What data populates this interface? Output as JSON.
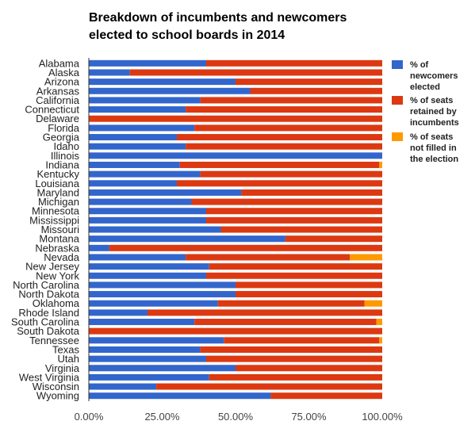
{
  "chart_data": {
    "type": "bar",
    "orientation": "horizontal",
    "stacked": true,
    "title_line1": "Breakdown of incumbents and newcomers",
    "title_line2": "elected to school boards in 2014",
    "categories": [
      "Alabama",
      "Alaska",
      "Arizona",
      "Arkansas",
      "California",
      "Connecticut",
      "Delaware",
      "Florida",
      "Georgia",
      "Idaho",
      "Illinois",
      "Indiana",
      "Kentucky",
      "Louisiana",
      "Maryland",
      "Michigan",
      "Minnesota",
      "Mississippi",
      "Missouri",
      "Montana",
      "Nebraska",
      "Nevada",
      "New Jersey",
      "New York",
      "North Carolina",
      "North Dakota",
      "Oklahoma",
      "Rhode Island",
      "South Carolina",
      "South Dakota",
      "Tennessee",
      "Texas",
      "Utah",
      "Virginia",
      "West Virginia",
      "Wisconsin",
      "Wyoming"
    ],
    "series": [
      {
        "name": "% of newcomers elected",
        "color": "#3366cc",
        "values": [
          40,
          14,
          50,
          55,
          38,
          33,
          0,
          36,
          30,
          33,
          100,
          31,
          38,
          30,
          52,
          35,
          40,
          40,
          45,
          67,
          7,
          33,
          41,
          40,
          50,
          50,
          44,
          20,
          36,
          0,
          46,
          38,
          40,
          50,
          41,
          23,
          62
        ]
      },
      {
        "name": "% of seats retained by incumbents",
        "color": "#dc3912",
        "values": [
          60,
          86,
          50,
          45,
          62,
          67,
          100,
          64,
          70,
          67,
          0,
          68,
          62,
          70,
          48,
          65,
          60,
          60,
          55,
          33,
          93,
          56,
          59,
          60,
          50,
          50,
          50,
          80,
          62,
          100,
          53,
          62,
          60,
          50,
          59,
          77,
          38
        ]
      },
      {
        "name": "% of seats not filled in the election",
        "color": "#ff9900",
        "values": [
          0,
          0,
          0,
          0,
          0,
          0,
          0,
          0,
          0,
          0,
          0,
          1,
          0,
          0,
          0,
          0,
          0,
          0,
          0,
          0,
          0,
          11,
          0,
          0,
          0,
          0,
          6,
          0,
          2,
          0,
          1,
          0,
          0,
          0,
          0,
          0,
          0
        ]
      }
    ],
    "x_tick_labels": [
      "0.00%",
      "25.00%",
      "50.00%",
      "75.00%",
      "100.00%"
    ],
    "xlim": [
      0,
      100
    ],
    "legend_position": "right",
    "legend": [
      {
        "lines": [
          "% of",
          "newcomers",
          "elected"
        ]
      },
      {
        "lines": [
          "% of seats",
          "retained by",
          "incumbents"
        ]
      },
      {
        "lines": [
          "% of seats",
          "not filled in",
          "the election"
        ]
      }
    ],
    "grid": false
  }
}
